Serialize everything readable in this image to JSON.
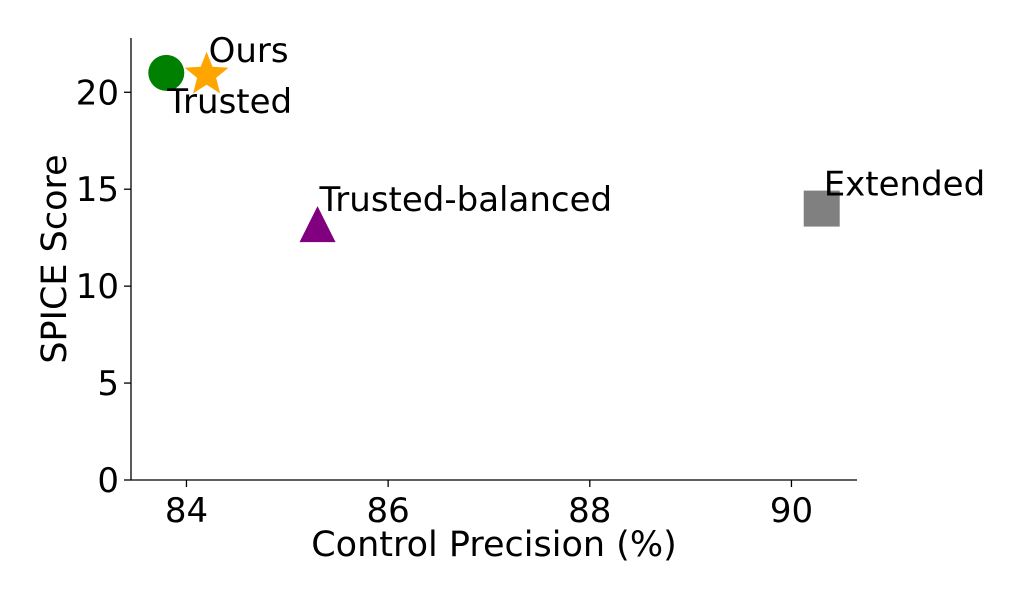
{
  "chart_data": {
    "type": "scatter",
    "title": "",
    "xlabel": "Control Precision (%)",
    "ylabel": "SPICE Score",
    "xlim": [
      83.45,
      90.65
    ],
    "ylim": [
      0,
      22.8
    ],
    "xticks": [
      84,
      86,
      88,
      90
    ],
    "yticks": [
      0,
      5,
      10,
      15,
      20
    ],
    "grid": false,
    "legend": "none",
    "points": [
      {
        "label": "Trusted",
        "x": 83.8,
        "y": 21.0,
        "marker": "circle",
        "color": "#008000",
        "label_anchor": "below-right"
      },
      {
        "label": "Ours",
        "x": 84.2,
        "y": 20.9,
        "marker": "star",
        "color": "#FFA500",
        "label_anchor": "above-right"
      },
      {
        "label": "Trusted-balanced",
        "x": 85.3,
        "y": 13.2,
        "marker": "triangle",
        "color": "#800080",
        "label_anchor": "above-right"
      },
      {
        "label": "Extended",
        "x": 90.3,
        "y": 14.0,
        "marker": "square",
        "color": "#808080",
        "label_anchor": "above-right"
      }
    ]
  }
}
